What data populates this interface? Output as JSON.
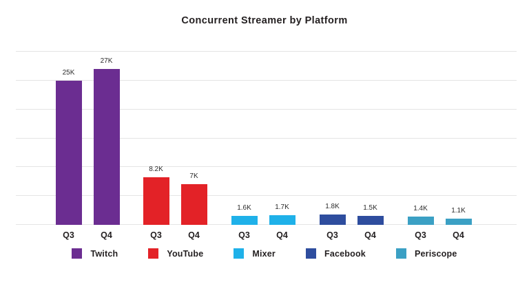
{
  "chart_data": {
    "type": "bar",
    "title": "Concurrent Streamer by Platform",
    "xlabel": "",
    "ylabel": "",
    "categories": [
      "Q3",
      "Q4"
    ],
    "groups": [
      {
        "name": "Twitch",
        "color": "#6b2d91",
        "values": [
          25000,
          27000
        ],
        "value_labels": [
          "25K",
          "27K"
        ]
      },
      {
        "name": "YouTube",
        "color": "#e32227",
        "values": [
          8200,
          7000
        ],
        "value_labels": [
          "8.2K",
          "7K"
        ]
      },
      {
        "name": "Mixer",
        "color": "#1fb1e9",
        "values": [
          1600,
          1700
        ],
        "value_labels": [
          "1.6K",
          "1.7K"
        ]
      },
      {
        "name": "Facebook",
        "color": "#2e4d9e",
        "values": [
          1800,
          1500
        ],
        "value_labels": [
          "1.8K",
          "1.5K"
        ]
      },
      {
        "name": "Periscope",
        "color": "#3ba0c4",
        "values": [
          1400,
          1100
        ],
        "value_labels": [
          "1.4K",
          "1.1K"
        ]
      }
    ],
    "ylim": [
      0,
      30000
    ],
    "gridline_step": 5000,
    "grid": true,
    "legend_position": "bottom"
  }
}
